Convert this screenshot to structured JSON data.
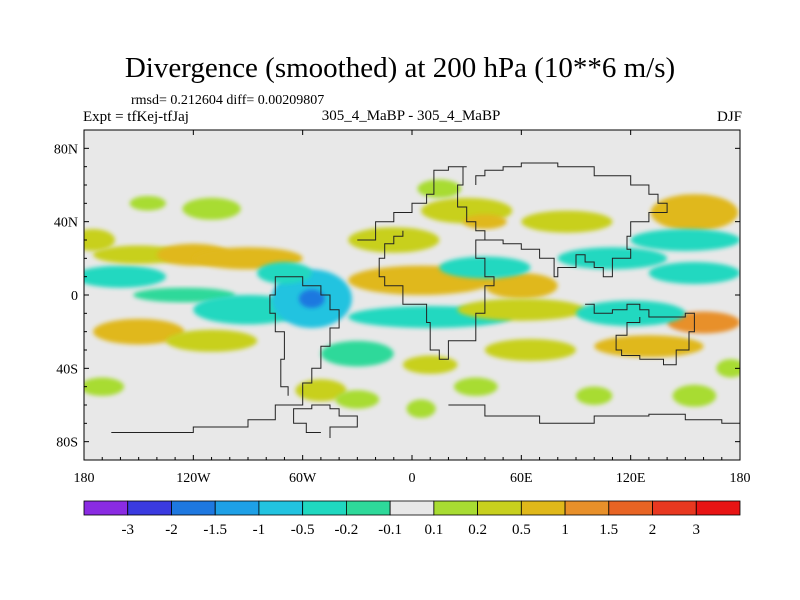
{
  "title": "Divergence (smoothed) at 200 hPa (10**6 m/s)",
  "stats_line": "rmsd= 0.212604 diff= 0.00209807",
  "left_label": "Expt = tfKej-tfJaj",
  "center_label": "305_4_MaBP - 305_4_MaBP",
  "right_label": "DJF",
  "chart_data": {
    "type": "heatmap",
    "title": "Divergence (smoothed) at 200 hPa (10**6 m/s)",
    "x_axis": {
      "range": [
        -180,
        180
      ],
      "ticks": [
        -180,
        -120,
        -60,
        0,
        60,
        120,
        180
      ],
      "tick_labels": [
        "180",
        "120W",
        "60W",
        "0",
        "60E",
        "120E",
        "180"
      ]
    },
    "y_axis": {
      "range": [
        -90,
        90
      ],
      "ticks": [
        80,
        40,
        0,
        -40,
        -80
      ],
      "tick_labels": [
        "80N",
        "40N",
        "0",
        "40S",
        "80S"
      ]
    },
    "colorbar": {
      "labels": [
        "-3",
        "-2",
        "-1.5",
        "-1",
        "-0.5",
        "-0.2",
        "-0.1",
        "0.1",
        "0.2",
        "0.5",
        "1",
        "1.5",
        "2",
        "3"
      ],
      "colors": [
        "#8a2be2",
        "#3a3ae0",
        "#1e78e0",
        "#1ea0e6",
        "#22c3e0",
        "#20d8c0",
        "#2ed99a",
        "#e8e8e8",
        "#a8dc32",
        "#c8d01e",
        "#e0b81a",
        "#e8902a",
        "#e86424",
        "#e83820",
        "#e81414"
      ]
    },
    "field_blobs": [
      {
        "lon": -175,
        "lat": 30,
        "rx": 12,
        "ry": 6,
        "level": 9
      },
      {
        "lon": -160,
        "lat": 10,
        "rx": 25,
        "ry": 6,
        "level": 5
      },
      {
        "lon": -150,
        "lat": 22,
        "rx": 25,
        "ry": 5,
        "level": 9
      },
      {
        "lon": -120,
        "lat": 22,
        "rx": 20,
        "ry": 6,
        "level": 10
      },
      {
        "lon": -90,
        "lat": 20,
        "rx": 30,
        "ry": 6,
        "level": 10
      },
      {
        "lon": -125,
        "lat": 0,
        "rx": 28,
        "ry": 4,
        "level": 6
      },
      {
        "lon": -150,
        "lat": -20,
        "rx": 25,
        "ry": 7,
        "level": 10
      },
      {
        "lon": -110,
        "lat": -25,
        "rx": 25,
        "ry": 6,
        "level": 9
      },
      {
        "lon": -90,
        "lat": -8,
        "rx": 30,
        "ry": 8,
        "level": 5
      },
      {
        "lon": -55,
        "lat": -2,
        "rx": 22,
        "ry": 16,
        "level": 4
      },
      {
        "lon": -55,
        "lat": -2,
        "rx": 7,
        "ry": 5,
        "level": 2
      },
      {
        "lon": -70,
        "lat": 12,
        "rx": 15,
        "ry": 6,
        "level": 5
      },
      {
        "lon": -30,
        "lat": -32,
        "rx": 20,
        "ry": 7,
        "level": 6
      },
      {
        "lon": -110,
        "lat": 47,
        "rx": 16,
        "ry": 6,
        "level": 8
      },
      {
        "lon": -145,
        "lat": 50,
        "rx": 10,
        "ry": 4,
        "level": 8
      },
      {
        "lon": -170,
        "lat": -50,
        "rx": 12,
        "ry": 5,
        "level": 8
      },
      {
        "lon": -50,
        "lat": -52,
        "rx": 14,
        "ry": 6,
        "level": 9
      },
      {
        "lon": -30,
        "lat": -57,
        "rx": 12,
        "ry": 5,
        "level": 8
      },
      {
        "lon": -10,
        "lat": 30,
        "rx": 25,
        "ry": 7,
        "level": 9
      },
      {
        "lon": 5,
        "lat": 8,
        "rx": 40,
        "ry": 8,
        "level": 10
      },
      {
        "lon": 60,
        "lat": 5,
        "rx": 20,
        "ry": 7,
        "level": 10
      },
      {
        "lon": 40,
        "lat": 15,
        "rx": 25,
        "ry": 6,
        "level": 5
      },
      {
        "lon": 10,
        "lat": -12,
        "rx": 45,
        "ry": 6,
        "level": 5
      },
      {
        "lon": 60,
        "lat": -8,
        "rx": 35,
        "ry": 6,
        "level": 9
      },
      {
        "lon": 30,
        "lat": 46,
        "rx": 25,
        "ry": 7,
        "level": 9
      },
      {
        "lon": 40,
        "lat": 40,
        "rx": 12,
        "ry": 4,
        "level": 10
      },
      {
        "lon": 15,
        "lat": 58,
        "rx": 12,
        "ry": 5,
        "level": 8
      },
      {
        "lon": 85,
        "lat": 40,
        "rx": 25,
        "ry": 6,
        "level": 9
      },
      {
        "lon": 110,
        "lat": 20,
        "rx": 30,
        "ry": 6,
        "level": 5
      },
      {
        "lon": 155,
        "lat": 45,
        "rx": 24,
        "ry": 10,
        "level": 10
      },
      {
        "lon": 150,
        "lat": 30,
        "rx": 30,
        "ry": 6,
        "level": 5
      },
      {
        "lon": 155,
        "lat": 12,
        "rx": 25,
        "ry": 6,
        "level": 5
      },
      {
        "lon": 160,
        "lat": -15,
        "rx": 20,
        "ry": 6,
        "level": 11
      },
      {
        "lon": 120,
        "lat": -10,
        "rx": 30,
        "ry": 7,
        "level": 5
      },
      {
        "lon": 130,
        "lat": -28,
        "rx": 30,
        "ry": 6,
        "level": 10
      },
      {
        "lon": 65,
        "lat": -30,
        "rx": 25,
        "ry": 6,
        "level": 9
      },
      {
        "lon": 10,
        "lat": -38,
        "rx": 15,
        "ry": 5,
        "level": 9
      },
      {
        "lon": 35,
        "lat": -50,
        "rx": 12,
        "ry": 5,
        "level": 8
      },
      {
        "lon": 5,
        "lat": -62,
        "rx": 8,
        "ry": 5,
        "level": 8
      },
      {
        "lon": 100,
        "lat": -55,
        "rx": 10,
        "ry": 5,
        "level": 8
      },
      {
        "lon": 155,
        "lat": -55,
        "rx": 12,
        "ry": 6,
        "level": 8
      },
      {
        "lon": 175,
        "lat": -40,
        "rx": 8,
        "ry": 5,
        "level": 8
      }
    ],
    "coastline_paths": [
      [
        [
          -165,
          -75
        ],
        [
          -120,
          -72
        ],
        [
          -90,
          -68
        ],
        [
          -75,
          -60
        ],
        [
          -60,
          -48
        ],
        [
          -55,
          -40
        ],
        [
          -50,
          -28
        ],
        [
          -45,
          -18
        ],
        [
          -40,
          -8
        ],
        [
          -45,
          0
        ],
        [
          -50,
          5
        ],
        [
          -60,
          10
        ],
        [
          -70,
          10
        ],
        [
          -75,
          0
        ],
        [
          -78,
          -10
        ],
        [
          -75,
          -20
        ],
        [
          -70,
          -35
        ],
        [
          -72,
          -50
        ],
        [
          -68,
          -55
        ]
      ],
      [
        [
          -50,
          -75
        ],
        [
          -58,
          -70
        ],
        [
          -65,
          -62
        ],
        [
          -55,
          -60
        ],
        [
          -45,
          -62
        ],
        [
          -40,
          -66
        ],
        [
          -30,
          -72
        ],
        [
          -45,
          -78
        ]
      ],
      [
        [
          -30,
          30
        ],
        [
          -20,
          40
        ],
        [
          -10,
          45
        ],
        [
          0,
          50
        ],
        [
          8,
          55
        ],
        [
          12,
          68
        ],
        [
          20,
          70
        ],
        [
          30,
          70
        ],
        [
          28,
          60
        ],
        [
          25,
          48
        ],
        [
          30,
          40
        ],
        [
          35,
          35
        ],
        [
          40,
          30
        ],
        [
          35,
          20
        ],
        [
          40,
          10
        ],
        [
          45,
          5
        ],
        [
          40,
          -10
        ],
        [
          35,
          -25
        ],
        [
          20,
          -35
        ],
        [
          15,
          -30
        ],
        [
          10,
          -15
        ],
        [
          8,
          -5
        ],
        [
          -5,
          5
        ],
        [
          -15,
          10
        ],
        [
          -18,
          20
        ],
        [
          -15,
          28
        ],
        [
          -10,
          32
        ],
        [
          -5,
          35
        ]
      ],
      [
        [
          40,
          30
        ],
        [
          50,
          28
        ],
        [
          60,
          25
        ],
        [
          70,
          20
        ],
        [
          78,
          10
        ],
        [
          80,
          15
        ],
        [
          90,
          22
        ],
        [
          95,
          18
        ],
        [
          100,
          15
        ],
        [
          105,
          10
        ],
        [
          110,
          20
        ],
        [
          120,
          25
        ],
        [
          118,
          32
        ],
        [
          120,
          40
        ],
        [
          128,
          40
        ],
        [
          130,
          45
        ],
        [
          140,
          50
        ],
        [
          135,
          55
        ],
        [
          130,
          60
        ],
        [
          120,
          65
        ],
        [
          100,
          70
        ],
        [
          80,
          72
        ],
        [
          60,
          70
        ],
        [
          50,
          68
        ],
        [
          40,
          65
        ],
        [
          35,
          60
        ]
      ],
      [
        [
          95,
          -5
        ],
        [
          100,
          -10
        ],
        [
          110,
          -8
        ],
        [
          118,
          -5
        ],
        [
          125,
          -8
        ],
        [
          130,
          -12
        ],
        [
          140,
          -12
        ],
        [
          150,
          -10
        ],
        [
          155,
          -20
        ],
        [
          152,
          -30
        ],
        [
          145,
          -38
        ],
        [
          138,
          -35
        ],
        [
          125,
          -33
        ],
        [
          115,
          -30
        ],
        [
          112,
          -22
        ],
        [
          118,
          -15
        ],
        [
          125,
          -12
        ]
      ],
      [
        [
          20,
          -60
        ],
        [
          40,
          -66
        ],
        [
          70,
          -70
        ],
        [
          100,
          -66
        ],
        [
          130,
          -65
        ],
        [
          150,
          -68
        ],
        [
          170,
          -70
        ],
        [
          180,
          -72
        ]
      ]
    ]
  }
}
